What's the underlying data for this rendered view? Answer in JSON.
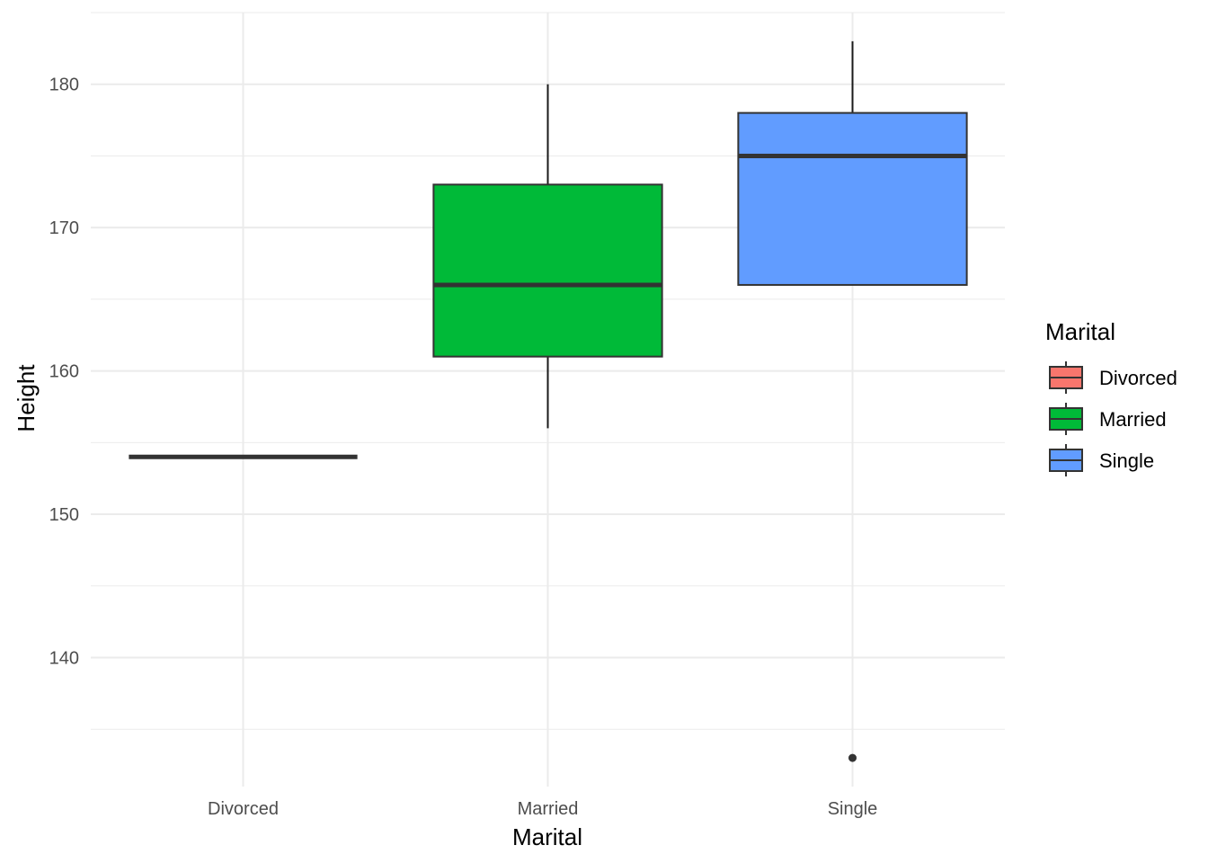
{
  "chart_data": {
    "type": "boxplot",
    "xlabel": "Marital",
    "ylabel": "Height",
    "categories": [
      "Divorced",
      "Married",
      "Single"
    ],
    "colors": {
      "Divorced": "#F8766D",
      "Married": "#00BA38",
      "Single": "#619CFF"
    },
    "ylim": [
      131,
      185
    ],
    "y_ticks": [
      140,
      150,
      160,
      170,
      180
    ],
    "grid": true,
    "boxes": [
      {
        "category": "Divorced",
        "lower_whisker": 154,
        "q1": 154,
        "median": 154,
        "q3": 154,
        "upper_whisker": 154,
        "outliers": []
      },
      {
        "category": "Married",
        "lower_whisker": 156,
        "q1": 161,
        "median": 166,
        "q3": 173,
        "upper_whisker": 180,
        "outliers": []
      },
      {
        "category": "Single",
        "lower_whisker": 166,
        "q1": 166,
        "median": 175,
        "q3": 178,
        "upper_whisker": 183,
        "outliers": [
          133
        ]
      }
    ],
    "legend": {
      "title": "Marital",
      "position": "right",
      "items": [
        "Divorced",
        "Married",
        "Single"
      ]
    }
  }
}
